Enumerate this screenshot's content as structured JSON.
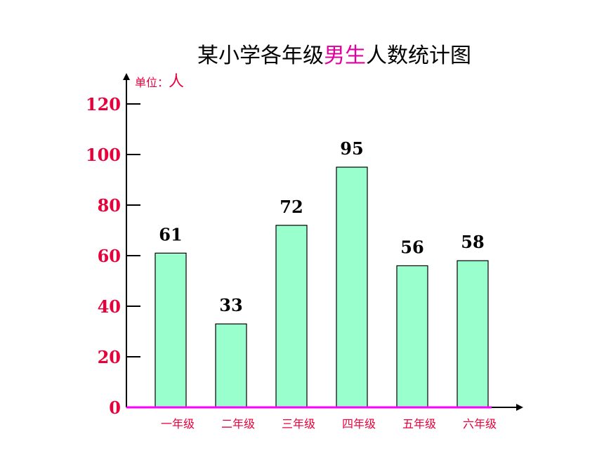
{
  "chart_data": {
    "type": "bar",
    "title": "某小学各年级男生人数统计图",
    "title_parts": {
      "before": "某小学各年级",
      "highlight": "男生",
      "after": "人数统计图"
    },
    "unit_label": "单位：",
    "unit_value": "人",
    "categories": [
      "一年级",
      "二年级",
      "三年级",
      "四年级",
      "五年级",
      "六年级"
    ],
    "values": [
      61,
      33,
      72,
      95,
      56,
      58
    ],
    "data_labels": [
      "61",
      "33",
      "72",
      "95",
      "56",
      "58"
    ],
    "yticks": [
      "0",
      "20",
      "40",
      "60",
      "80",
      "100",
      "120"
    ],
    "ylim": [
      0,
      120
    ],
    "grid": false,
    "colors": {
      "bar": "#99ffcc",
      "bar_stroke": "#000000",
      "axis": "#000000",
      "baseline": "#ff00ff",
      "tick_label": "#e8003a",
      "category_label": "#e8003a",
      "highlight": "#e000a0",
      "unit": "#e8003a"
    }
  }
}
